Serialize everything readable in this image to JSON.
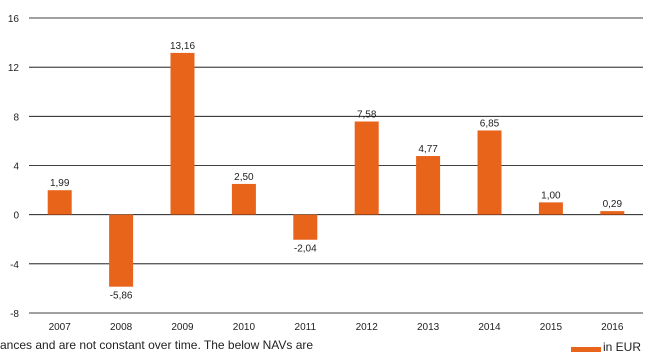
{
  "chart_data": {
    "type": "bar",
    "categories": [
      "2007",
      "2008",
      "2009",
      "2010",
      "2011",
      "2012",
      "2013",
      "2014",
      "2015",
      "2016"
    ],
    "values": [
      1.99,
      -5.86,
      13.16,
      2.5,
      -2.04,
      7.58,
      4.77,
      6.85,
      1.0,
      0.29
    ],
    "value_labels": [
      "1,99",
      "-5,86",
      "13,16",
      "2,50",
      "-2,04",
      "7,58",
      "4,77",
      "6,85",
      "1,00",
      "0,29"
    ],
    "yticks": [
      16,
      12,
      8,
      4,
      0,
      -4,
      -8
    ],
    "ytick_labels": [
      "16",
      "12",
      "8",
      "4",
      "0",
      "-4",
      "-8"
    ],
    "ylim": [
      -8,
      16
    ],
    "title": "",
    "xlabel": "",
    "ylabel": "",
    "grid": true,
    "bar_color": "#e8641b",
    "legend": {
      "label": "in EUR",
      "placement": "bottom-right"
    }
  },
  "footer_note": "ances and are not constant over time. The below NAVs are"
}
